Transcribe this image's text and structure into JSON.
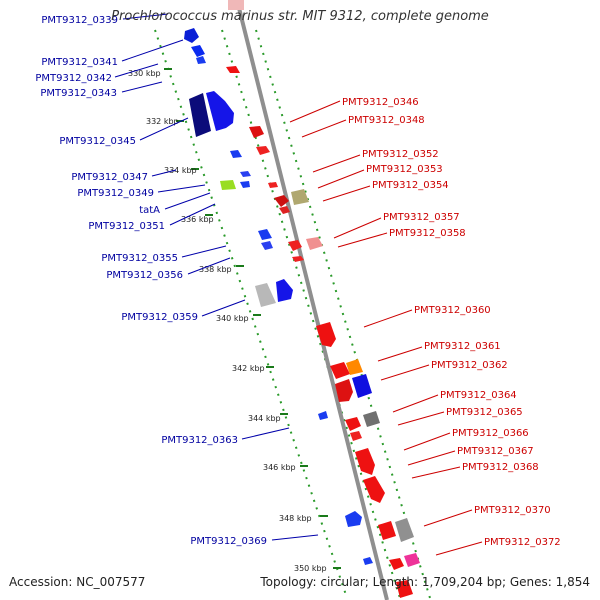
{
  "title": "Prochlorococcus marinus str. MIT 9312, complete genome",
  "accession": "Accession: NC_007577",
  "summary": "Topology: circular; Length: 1,709,204 bp; Genes: 1,854",
  "colors": {
    "forward": "#ff0000",
    "reverse": "#0000ff",
    "label_forward": "#cc0000",
    "label_reverse": "#000099",
    "backbone": "#888888",
    "tick": "#008000"
  },
  "kbp_labels": [
    "330 kbp",
    "332 kbp",
    "334 kbp",
    "336 kbp",
    "338 kbp",
    "340 kbp",
    "342 kbp",
    "344 kbp",
    "346 kbp",
    "348 kbp",
    "350 kbp"
  ],
  "labels_left": [
    "PMT9312_0339",
    "PMT9312_0341",
    "PMT9312_0342",
    "PMT9312_0343",
    "PMT9312_0345",
    "PMT9312_0347",
    "PMT9312_0349",
    "tatA",
    "PMT9312_0351",
    "PMT9312_0355",
    "PMT9312_0356",
    "PMT9312_0359",
    "PMT9312_0363",
    "PMT9312_0369"
  ],
  "labels_right": [
    "PMT9312_0346",
    "PMT9312_0348",
    "PMT9312_0352",
    "PMT9312_0353",
    "PMT9312_0354",
    "PMT9312_0357",
    "PMT9312_0358",
    "PMT9312_0360",
    "PMT9312_0361",
    "PMT9312_0362",
    "PMT9312_0364",
    "PMT9312_0365",
    "PMT9312_0366",
    "PMT9312_0367",
    "PMT9312_0368",
    "PMT9312_0370",
    "PMT9312_0372"
  ]
}
